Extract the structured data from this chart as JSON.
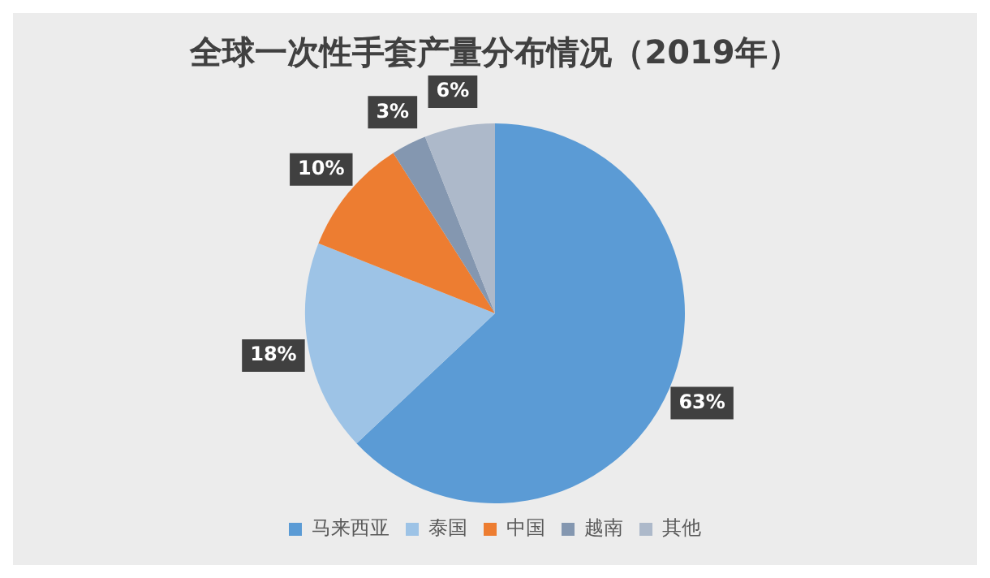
{
  "chart_data": {
    "type": "pie",
    "title": "全球一次性手套产量分布情况（2019年）",
    "categories": [
      "马来西亚",
      "泰国",
      "中国",
      "越南",
      "其他"
    ],
    "values": [
      63,
      18,
      10,
      3,
      6
    ],
    "colors": [
      "#5b9bd5",
      "#9dc3e6",
      "#ed7d31",
      "#8497b0",
      "#adb9ca"
    ],
    "value_labels": [
      "63%",
      "18%",
      "10%",
      "3%",
      "6%"
    ],
    "legend": "bottom"
  }
}
